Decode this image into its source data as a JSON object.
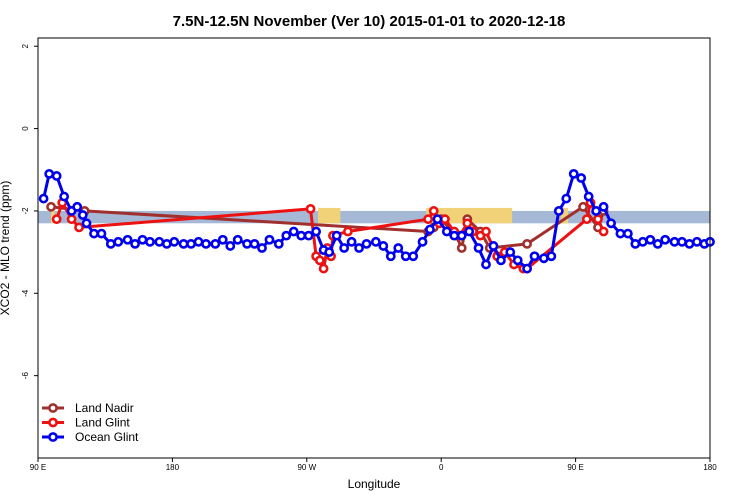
{
  "chart_data": {
    "type": "line",
    "title": "7.5N-12.5N November (Ver 10)   2015-01-01 to 2020-12-18",
    "xlabel": "Longitude",
    "ylabel": "XCO2 - MLO trend (ppm)",
    "xlim": [
      90,
      450
    ],
    "ylim": [
      -8,
      2.2
    ],
    "x_ticks": [
      {
        "value": 90,
        "label": "90 E"
      },
      {
        "value": 162,
        "label": "180"
      },
      {
        "value": 234,
        "label": "90 W"
      },
      {
        "value": 306,
        "label": "0"
      },
      {
        "value": 378,
        "label": "90 E"
      },
      {
        "value": 450,
        "label": "180"
      }
    ],
    "y_ticks": [
      {
        "value": 2,
        "label": "2"
      },
      {
        "value": 0,
        "label": "0"
      },
      {
        "value": -2,
        "label": "-2"
      },
      {
        "value": -4,
        "label": "-4"
      },
      {
        "value": -6,
        "label": "-6"
      }
    ],
    "band": {
      "y_low": -2.3,
      "y_high": -2.0,
      "color": "#a5b9d6"
    },
    "land_patches": {
      "color": "#f2d278",
      "ranges": [
        [
          97,
          99
        ],
        [
          240,
          252
        ],
        [
          298,
          344
        ],
        [
          370,
          374
        ]
      ]
    },
    "legend_position": "bottom-left",
    "series": [
      {
        "name": "Land Nadir",
        "color": "#a0302e",
        "x": [
          97,
          115,
          299,
          302,
          306,
          314,
          317,
          320,
          327,
          332,
          352,
          382,
          390,
          393
        ],
        "y": [
          -1.9,
          -2.0,
          -2.5,
          -2.4,
          -2.2,
          -2.6,
          -2.9,
          -2.2,
          -2.5,
          -2.9,
          -2.8,
          -1.9,
          -2.4,
          -2.0
        ]
      },
      {
        "name": "Land Glint",
        "color": "#ee1111",
        "x": [
          100,
          103,
          108,
          112,
          236,
          239,
          241,
          243,
          245,
          247,
          248,
          256,
          299,
          302,
          305,
          308,
          313,
          316,
          320,
          323,
          327,
          330,
          336,
          340,
          345,
          350,
          352,
          384,
          386,
          390,
          393
        ],
        "y": [
          -2.2,
          -1.8,
          -2.2,
          -2.4,
          -1.95,
          -3.1,
          -3.2,
          -3.4,
          -2.9,
          -3.1,
          -2.6,
          -2.5,
          -2.2,
          -2.0,
          -2.3,
          -2.2,
          -2.5,
          -2.6,
          -2.3,
          -2.5,
          -2.6,
          -2.5,
          -3.1,
          -3.0,
          -3.3,
          -3.4,
          -3.4,
          -2.2,
          -1.8,
          -2.2,
          -2.5
        ]
      },
      {
        "name": "Ocean Glint",
        "color": "#0000ee",
        "x": [
          93,
          96,
          100,
          104,
          108,
          111,
          114,
          116,
          120,
          124,
          129,
          133,
          138,
          142,
          146,
          150,
          155,
          159,
          163,
          168,
          172,
          176,
          180,
          185,
          189,
          193,
          197,
          202,
          206,
          210,
          214,
          219,
          223,
          227,
          231,
          235,
          239,
          243,
          246,
          250,
          254,
          258,
          262,
          266,
          271,
          275,
          279,
          283,
          287,
          291,
          296,
          300,
          304,
          309,
          313,
          317,
          321,
          326,
          330,
          334,
          338,
          343,
          347,
          352,
          356,
          361,
          365,
          369,
          373,
          377,
          381,
          385,
          389,
          393,
          397,
          402,
          406,
          410,
          414,
          418,
          422,
          426,
          431,
          435,
          439,
          443,
          447,
          450
        ],
        "y": [
          -1.7,
          -1.1,
          -1.15,
          -1.65,
          -2.0,
          -1.9,
          -2.1,
          -2.3,
          -2.55,
          -2.55,
          -2.8,
          -2.75,
          -2.7,
          -2.8,
          -2.7,
          -2.75,
          -2.75,
          -2.8,
          -2.75,
          -2.8,
          -2.8,
          -2.75,
          -2.8,
          -2.8,
          -2.7,
          -2.85,
          -2.7,
          -2.8,
          -2.8,
          -2.9,
          -2.7,
          -2.8,
          -2.6,
          -2.5,
          -2.6,
          -2.6,
          -2.5,
          -2.95,
          -3.0,
          -2.6,
          -2.9,
          -2.75,
          -2.9,
          -2.8,
          -2.75,
          -2.85,
          -3.1,
          -2.9,
          -3.1,
          -3.1,
          -2.75,
          -2.45,
          -2.2,
          -2.5,
          -2.6,
          -2.6,
          -2.5,
          -2.9,
          -3.3,
          -2.85,
          -3.2,
          -3.0,
          -3.2,
          -3.4,
          -3.1,
          -3.15,
          -3.1,
          -2.0,
          -1.7,
          -1.1,
          -1.2,
          -1.65,
          -2.0,
          -1.9,
          -2.3,
          -2.55,
          -2.55,
          -2.8,
          -2.75,
          -2.7,
          -2.8,
          -2.7,
          -2.75,
          -2.75,
          -2.8,
          -2.75,
          -2.8,
          -2.75
        ]
      }
    ]
  }
}
